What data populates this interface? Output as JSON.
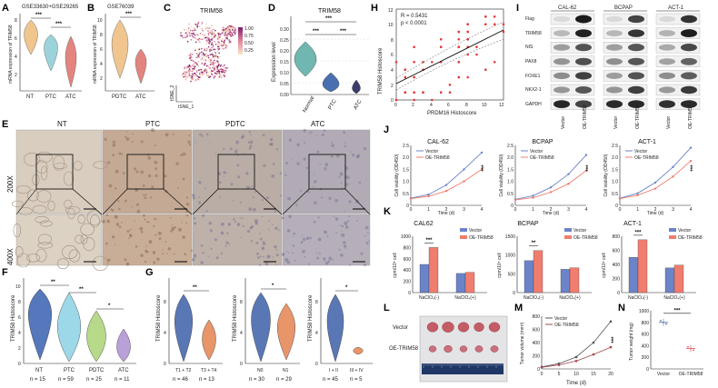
{
  "panel_labels": [
    "A",
    "B",
    "C",
    "D",
    "E",
    "F",
    "G",
    "H",
    "I",
    "J",
    "K",
    "L",
    "M",
    "N"
  ],
  "colors": {
    "NT": "#f0c58e",
    "PTC": "#9cd3db",
    "ATC": "#e3857e",
    "PDTC": "#f0c58e",
    "F_NT": "#5577bb",
    "F_PTC": "#9dd8e8",
    "F_PDTC": "#b7d98a",
    "F_ATC": "#b9a0d8",
    "G_violin": "#5a77b5",
    "G_violin2": "#e8956a",
    "vector": "#6b84c9",
    "oe": "#f07d6e",
    "ihc": "#c9b7a8",
    "tsne": "#d36d8c"
  },
  "panelA": {
    "title": "GSE33630+GSE29265",
    "ylabel": "mRNA expression of TRIM58",
    "categories": [
      "NT",
      "PTC",
      "ATC"
    ],
    "yticks": [
      "2",
      "4",
      "6",
      "8"
    ],
    "stars": [
      "***",
      "***"
    ]
  },
  "panelB": {
    "title": "GSE76039",
    "ylabel": "mRNA expression of TRIM58",
    "categories": [
      "PDTC",
      "ATC"
    ],
    "yticks": [
      "2",
      "4",
      "6",
      "8",
      "10"
    ],
    "stars": [
      "***"
    ]
  },
  "panelC": {
    "title": "TRIM58",
    "xlabel": "tSNE_1",
    "ylabel": "tSNE_2",
    "legend": [
      "1.00",
      "0.75",
      "0.50",
      "0.25"
    ]
  },
  "panelD": {
    "title": "TRIM58",
    "ylabel": "Expression level",
    "categories": [
      "Normal",
      "PTC",
      "ATC"
    ],
    "yticks": [
      "0.00",
      "0.05",
      "0.10",
      "0.15",
      "0.20",
      "0.25",
      "0.30"
    ],
    "stars": [
      "***",
      "***",
      "***"
    ]
  },
  "panelE": {
    "columns": [
      "NT",
      "PTC",
      "PDTC",
      "ATC"
    ],
    "rows": [
      "200X",
      "400X"
    ]
  },
  "panelF": {
    "ylabel": "TRIM58 Histoscore",
    "categories": [
      "NT",
      "PTC",
      "PDTC",
      "ATC"
    ],
    "counts": [
      "n = 15",
      "n = 59",
      "n = 25",
      "n = 11"
    ],
    "yticks": [
      "0",
      "2",
      "4",
      "6",
      "8",
      "10"
    ],
    "stars": [
      "**",
      "**",
      "*"
    ]
  },
  "panelG": {
    "ylabel": "TRIM58 Histoscore",
    "groups": [
      {
        "categories": [
          "T1 + T2",
          "T3 + T4"
        ],
        "counts": [
          "n = 46",
          "n = 13"
        ],
        "star": "**"
      },
      {
        "categories": [
          "N0",
          "N1"
        ],
        "counts": [
          "n = 30",
          "n = 29"
        ],
        "star": "*"
      },
      {
        "categories": [
          "I + II",
          "III + IV"
        ],
        "counts": [
          "n = 45",
          "n = 5"
        ],
        "star": "*"
      }
    ],
    "yticks": [
      "0",
      "2",
      "4",
      "6",
      "8",
      "10"
    ]
  },
  "panelH": {
    "xlabel": "PRDM16 Histoscore",
    "ylabel": "TRIM58 Histoscore",
    "stat_r": "R = 0.5431",
    "stat_p": "p < 0.0001",
    "xticks": [
      "0",
      "2",
      "4",
      "6",
      "8",
      "10",
      "12"
    ],
    "yticks": [
      "0",
      "2",
      "4",
      "6",
      "8",
      "10",
      "12"
    ]
  },
  "panelI": {
    "cells": [
      "CAL-62",
      "BCPAP",
      "ACT-1"
    ],
    "bands": [
      "Flag",
      "TRIM58",
      "NIS",
      "PAX8",
      "FOXE1",
      "NKX2-1",
      "GAPDH"
    ],
    "lanes": [
      "Vector",
      "OE-TRIM58"
    ]
  },
  "panelJ": {
    "ylabel": "Cell viability (OD450)",
    "xlabel": "Time (d)",
    "legend": [
      "Vector",
      "OE-TRIM58"
    ],
    "xticks": [
      "0",
      "1",
      "2",
      "3",
      "4"
    ],
    "yticks": [
      "0",
      "0.5",
      "1.0",
      "1.5",
      "2.0",
      "2.5"
    ],
    "star": "***",
    "charts": [
      {
        "title": "CAL-62",
        "vector": [
          0.3,
          0.45,
          0.85,
          1.5,
          2.2
        ],
        "oe": [
          0.28,
          0.38,
          0.6,
          1.0,
          1.5
        ]
      },
      {
        "title": "BCPAP",
        "vector": [
          0.25,
          0.4,
          0.75,
          1.3,
          2.1
        ],
        "oe": [
          0.23,
          0.32,
          0.55,
          0.9,
          1.45
        ]
      },
      {
        "title": "ACT-1",
        "vector": [
          0.3,
          0.5,
          0.95,
          1.6,
          2.4
        ],
        "oe": [
          0.28,
          0.42,
          0.7,
          1.2,
          1.85
        ]
      }
    ]
  },
  "panelK": {
    "ylabel": "cpm/10⁵ cell",
    "groups": [
      "NaClO₄(-)",
      "NaClO₄(+)"
    ],
    "legend": [
      "Vector",
      "OE-TRIM58"
    ],
    "charts": [
      {
        "title": "CAL62",
        "yticks": [
          "0",
          "200",
          "400",
          "600",
          "800",
          "1000"
        ],
        "ymax": 1000,
        "vector": [
          500,
          340
        ],
        "oe": [
          800,
          360
        ],
        "star": "***"
      },
      {
        "title": "BCPAP",
        "yticks": [
          "0",
          "500",
          "1000",
          "1500"
        ],
        "ymax": 1500,
        "vector": [
          850,
          620
        ],
        "oe": [
          1120,
          660
        ],
        "star": "**"
      },
      {
        "title": "ACT-1",
        "yticks": [
          "0",
          "200",
          "400",
          "600",
          "800"
        ],
        "ymax": 800,
        "vector": [
          500,
          350
        ],
        "oe": [
          750,
          390
        ],
        "star": "***"
      }
    ]
  },
  "panelL": {
    "rows": [
      "Vector",
      "OE-TRIM58"
    ]
  },
  "panelM": {
    "ylabel": "Tumor volume (mm³)",
    "xlabel": "Time (d)",
    "legend": [
      "Vector",
      "OE-TRIM58"
    ],
    "xticks": [
      "0",
      "5",
      "10",
      "15",
      "20"
    ],
    "yticks": [
      "0",
      "200",
      "400",
      "600",
      "800"
    ],
    "star": "***",
    "x": [
      0,
      5,
      10,
      15,
      20
    ],
    "vector": [
      30,
      80,
      180,
      400,
      720
    ],
    "oe": [
      25,
      60,
      120,
      220,
      330
    ]
  },
  "panelN": {
    "ylabel": "Tumor weight (mg)",
    "categories": [
      "Vector",
      "OE-TRIM58"
    ],
    "yticks": [
      "0",
      "200",
      "400",
      "600",
      "800",
      "1000"
    ],
    "star": "***",
    "values": [
      800,
      350
    ]
  }
}
